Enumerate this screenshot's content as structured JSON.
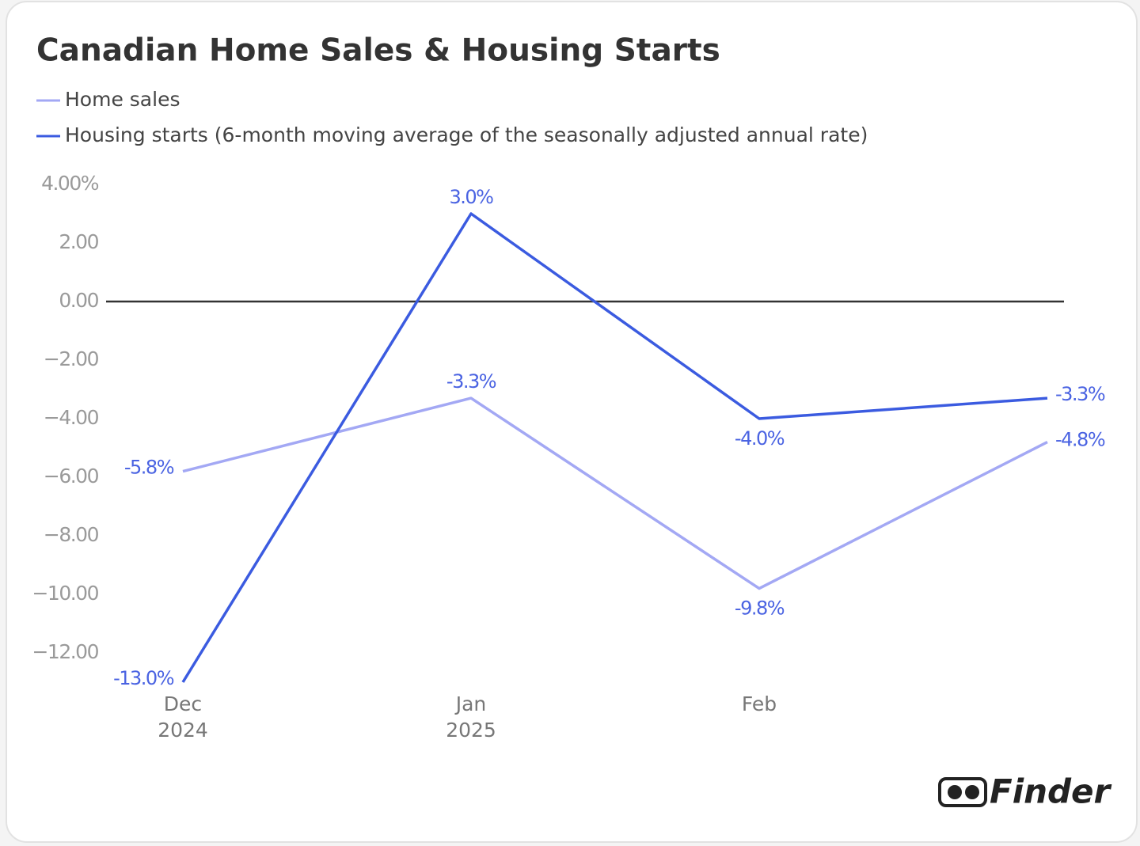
{
  "chart_data": {
    "type": "line",
    "title": "Canadian Home Sales & Housing Starts",
    "categories": [
      [
        "Dec",
        "2024"
      ],
      [
        "Jan",
        "2025"
      ],
      [
        "Feb"
      ],
      null
    ],
    "series": [
      {
        "name": "Home sales",
        "color": "#a3a8f4",
        "values": [
          -5.8,
          -3.3,
          -9.8,
          -4.8
        ],
        "value_labels": [
          "-5.8%",
          "-3.3%",
          "-9.8%",
          "-4.8%"
        ]
      },
      {
        "name": "Housing starts (6-month moving average of the seasonally adjusted annual rate)",
        "color": "#3b5be0",
        "values": [
          -13.0,
          3.0,
          -4.0,
          -3.3
        ],
        "value_labels": [
          "-13.0%",
          "3.0%",
          "-4.0%",
          "-3.3%"
        ]
      }
    ],
    "ylim": [
      -13,
      4
    ],
    "yticks": [
      {
        "value": 4,
        "label": "4.00%"
      },
      {
        "value": 2,
        "label": "2.00"
      },
      {
        "value": 0,
        "label": "0.00"
      },
      {
        "value": -2,
        "label": "−2.00"
      },
      {
        "value": -4,
        "label": "−4.00"
      },
      {
        "value": -6,
        "label": "−6.00"
      },
      {
        "value": -8,
        "label": "−8.00"
      },
      {
        "value": -10,
        "label": "−10.00"
      },
      {
        "value": -12,
        "label": "−12.00"
      }
    ],
    "zero_line": true,
    "label_color": "#4a63e2",
    "logo": "Finder"
  }
}
